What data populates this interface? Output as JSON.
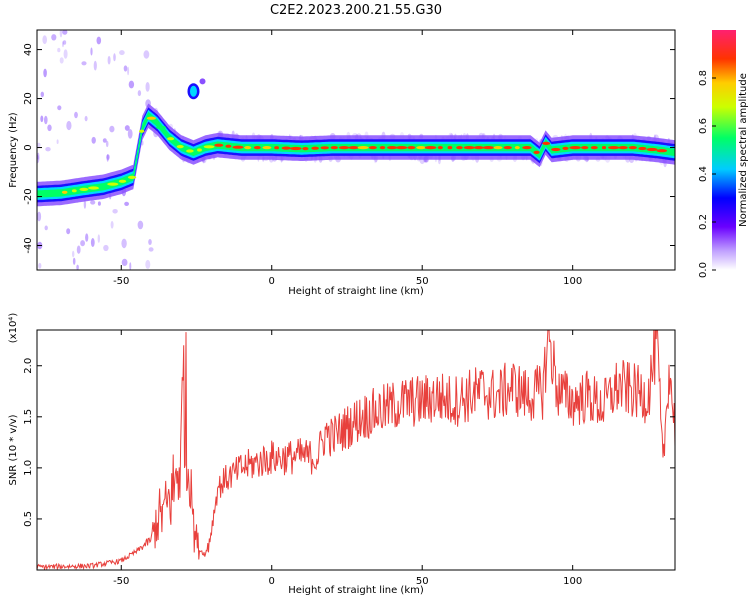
{
  "figure": {
    "title": "C2E2.2023.200.21.55.G30"
  },
  "chart_data": [
    {
      "type": "heatmap",
      "title": "",
      "xlabel": "Height of straight line (km)",
      "ylabel": "Frequency (Hz)",
      "xlim": [
        -78,
        134
      ],
      "ylim": [
        -50,
        48
      ],
      "xticks": [
        -50,
        0,
        50,
        100
      ],
      "yticks": [
        -40,
        -20,
        0,
        20,
        40
      ],
      "grid": false,
      "colormap": "rainbow",
      "colorbar": {
        "label": "Normalized spectral amplitude",
        "range": [
          0.0,
          1.0
        ],
        "ticks": [
          0.0,
          0.2,
          0.4,
          0.6,
          0.8
        ]
      },
      "ridge": {
        "description_points_x": [
          -78,
          -70,
          -62,
          -56,
          -50,
          -46,
          -43,
          -41,
          -38,
          -34,
          -30,
          -26,
          -22,
          -18,
          -10,
          0,
          10,
          20,
          30,
          40,
          50,
          60,
          70,
          80,
          86,
          89,
          91,
          93,
          100,
          110,
          120,
          128,
          134
        ],
        "frequency_hz": [
          -19,
          -18.5,
          -17,
          -16,
          -14,
          -12,
          8,
          13,
          10,
          4,
          0,
          -2,
          0,
          1,
          0,
          0,
          -0.5,
          0,
          0,
          0,
          0,
          0,
          0,
          0,
          0,
          -3,
          2,
          -1,
          0,
          0,
          0,
          -1,
          -2
        ]
      },
      "isolated_blob": {
        "x": -26,
        "frequency_hz": 23
      }
    },
    {
      "type": "line",
      "title": "",
      "xlabel": "Height of straight line (km)",
      "ylabel": "SNR (10 * v/v)",
      "y_multiplier": "(x10⁴)",
      "xlim": [
        -78,
        134
      ],
      "ylim": [
        0,
        23500
      ],
      "xticks": [
        -50,
        0,
        50,
        100
      ],
      "yticks": [
        5000,
        10000,
        15000,
        20000
      ],
      "ytick_labels": [
        "0.5",
        "1.0",
        "1.5",
        "2.0"
      ],
      "grid": false,
      "series": [
        {
          "color": "#e8403c",
          "x": [
            -78,
            -60,
            -50,
            -45,
            -40,
            -38,
            -35,
            -32,
            -30,
            -29,
            -28,
            -27,
            -26,
            -24,
            -22,
            -20,
            -18,
            -15,
            -12,
            -10,
            -5,
            0,
            5,
            10,
            15,
            18,
            20,
            25,
            30,
            35,
            40,
            45,
            50,
            55,
            60,
            65,
            70,
            75,
            80,
            85,
            90,
            92,
            95,
            100,
            105,
            110,
            115,
            120,
            125,
            128,
            130,
            132,
            134
          ],
          "values": [
            300,
            400,
            900,
            1800,
            3000,
            5000,
            6000,
            8500,
            12000,
            21500,
            9000,
            13000,
            4000,
            2000,
            1500,
            4000,
            8000,
            9000,
            9500,
            10000,
            10500,
            11000,
            11000,
            11200,
            11000,
            13500,
            13000,
            14000,
            15000,
            15500,
            16000,
            16500,
            16500,
            17000,
            16500,
            17000,
            17500,
            17000,
            18000,
            17000,
            17500,
            23000,
            17500,
            16500,
            17000,
            16000,
            18000,
            17500,
            17000,
            22500,
            10000,
            20000,
            14000
          ]
        }
      ]
    }
  ]
}
